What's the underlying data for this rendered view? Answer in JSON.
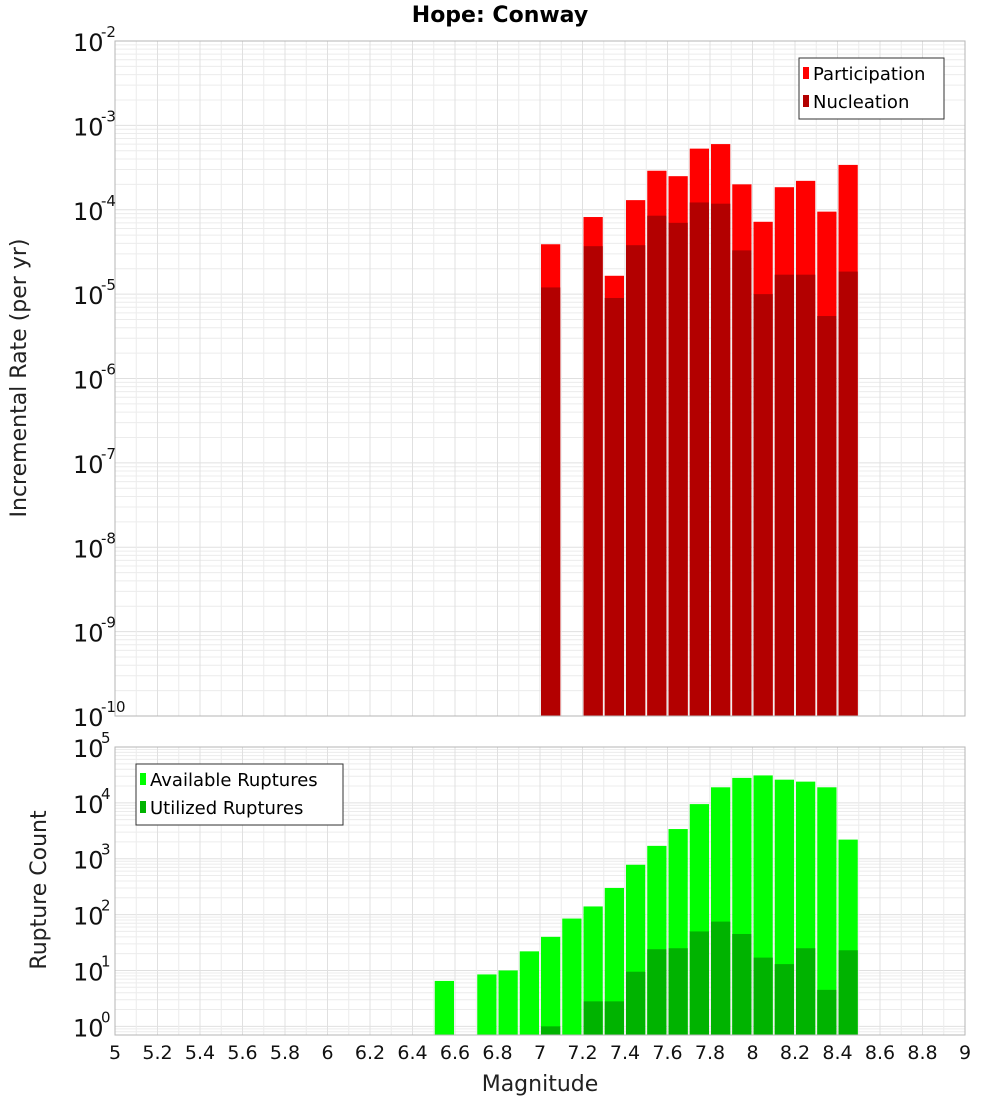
{
  "chart_data": [
    {
      "type": "bar",
      "title": "Hope: Conway",
      "xlabel": "",
      "ylabel": "Incremental Rate (per yr)",
      "yscale": "log",
      "ylim": [
        1e-10,
        0.01
      ],
      "xlim": [
        5,
        9
      ],
      "ytick_exponents": [
        -2,
        -3,
        -4,
        -5,
        -6,
        -7,
        -8,
        -9,
        -10
      ],
      "ytick_base": "10",
      "grid": true,
      "legend_position": "top-right",
      "series": [
        {
          "name": "Participation",
          "color": "#ff0000",
          "x": [
            7.05,
            7.25,
            7.35,
            7.45,
            7.55,
            7.65,
            7.75,
            7.85,
            7.95,
            8.05,
            8.15,
            8.25,
            8.35,
            8.45
          ],
          "values": [
            3.9e-05,
            8.2e-05,
            1.65e-05,
            0.00013,
            0.00029,
            0.00025,
            0.00053,
            0.0006,
            0.0002,
            7.2e-05,
            0.000185,
            0.00022,
            9.5e-05,
            0.00034
          ]
        },
        {
          "name": "Nucleation",
          "color": "#b30000",
          "x": [
            7.05,
            7.25,
            7.35,
            7.45,
            7.55,
            7.65,
            7.75,
            7.85,
            7.95,
            8.05,
            8.15,
            8.25,
            8.35,
            8.45
          ],
          "values": [
            1.2e-05,
            3.7e-05,
            9e-06,
            3.8e-05,
            8.5e-05,
            7e-05,
            0.000122,
            0.000118,
            3.3e-05,
            1e-05,
            1.7e-05,
            1.7e-05,
            5.5e-06,
            1.85e-05
          ]
        }
      ]
    },
    {
      "type": "bar",
      "title": "",
      "xlabel": "Magnitude",
      "ylabel": "Rupture Count",
      "yscale": "log",
      "ylim": [
        0.7,
        100000.0
      ],
      "xlim": [
        5,
        9
      ],
      "ytick_exponents": [
        5,
        4,
        3,
        2,
        1,
        0
      ],
      "ytick_base": "10",
      "xtick_labels": [
        "5",
        "5.2",
        "5.4",
        "5.6",
        "5.8",
        "6",
        "6.2",
        "6.4",
        "6.6",
        "6.8",
        "7",
        "7.2",
        "7.4",
        "7.6",
        "7.8",
        "8",
        "8.2",
        "8.4",
        "8.6",
        "8.8",
        "9"
      ],
      "grid": true,
      "legend_position": "top-left",
      "series": [
        {
          "name": "Available Ruptures",
          "color": "#00ff00",
          "x": [
            6.55,
            6.75,
            6.85,
            6.95,
            7.05,
            7.15,
            7.25,
            7.35,
            7.45,
            7.55,
            7.65,
            7.75,
            7.85,
            7.95,
            8.05,
            8.15,
            8.25,
            8.35,
            8.45
          ],
          "values": [
            6.5,
            8.5,
            10,
            22,
            40,
            85,
            140,
            300,
            780,
            1700,
            3400,
            9500,
            19000,
            28000,
            31000,
            26000,
            24000,
            19000,
            2200
          ]
        },
        {
          "name": "Utilized Ruptures",
          "color": "#00b300",
          "x": [
            7.05,
            7.25,
            7.35,
            7.45,
            7.55,
            7.65,
            7.75,
            7.85,
            7.95,
            8.05,
            8.15,
            8.25,
            8.35,
            8.45
          ],
          "values": [
            1,
            2.8,
            2.8,
            9.5,
            24,
            25,
            50,
            75,
            45,
            17,
            13,
            25,
            4.5,
            23
          ]
        }
      ]
    }
  ]
}
